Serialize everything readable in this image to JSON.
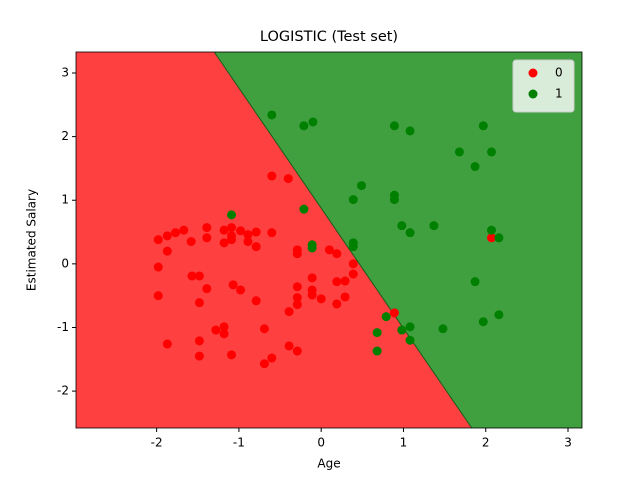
{
  "chart_data": {
    "type": "scatter",
    "title": "LOGISTIC (Test set)",
    "x_label": "Age",
    "y_label": "Estimated Salary",
    "xlim": [
      -2.98,
      3.17
    ],
    "ylim": [
      -2.58,
      3.33
    ],
    "xticks": [
      -2,
      -1,
      0,
      1,
      2,
      3
    ],
    "yticks": [
      -2,
      -1,
      0,
      1,
      2,
      3
    ],
    "legend": "upper right",
    "decision_boundary": {
      "x": [
        -1.3,
        1.83
      ],
      "y": [
        3.33,
        -2.58
      ],
      "colors": [
        "#ff4040",
        "#40a040"
      ]
    },
    "series": [
      {
        "name": "0",
        "color": "#ff0000",
        "x": [
          -1.98,
          -1.87,
          -1.77,
          -1.67,
          -1.98,
          -1.87,
          -1.98,
          -1.87,
          -1.58,
          -1.57,
          -1.48,
          -1.48,
          -1.39,
          -1.39,
          -1.39,
          -1.18,
          -1.18,
          -1.09,
          -1.09,
          -1.07,
          -0.98,
          -0.98,
          -1.09,
          -0.89,
          -0.89,
          -0.79,
          -0.79,
          -0.79,
          -0.6,
          -1.28,
          -1.18,
          -1.18,
          -1.48,
          -1.48,
          -1.09,
          -0.69,
          -0.69,
          -0.6,
          -0.39,
          -0.29,
          -0.39,
          -0.29,
          -0.29,
          -0.29,
          -0.29,
          -0.29,
          -0.11,
          -0.11,
          0,
          -0.11,
          0.1,
          0.19,
          0.19,
          0.29,
          0.19,
          0.29,
          0.39,
          0.39,
          -0.6,
          -0.4,
          0.89,
          2.07
        ],
        "values": [
          0.38,
          0.44,
          0.49,
          0.53,
          -0.05,
          0.2,
          -0.5,
          -1.26,
          0.35,
          -0.19,
          -0.19,
          -0.61,
          -0.39,
          0.57,
          0.41,
          0.53,
          0.33,
          0.57,
          0.44,
          -0.33,
          -0.41,
          0.52,
          0.38,
          0.46,
          0.35,
          0.5,
          0.27,
          -0.58,
          0.49,
          -1.04,
          -0.99,
          -1.1,
          -1.21,
          -1.45,
          -1.43,
          -1.02,
          -1.57,
          -1.48,
          -1.29,
          -1.37,
          -0.75,
          -0.64,
          -0.53,
          -0.36,
          0.22,
          0.16,
          -0.41,
          -0.49,
          -0.55,
          -0.22,
          0.22,
          0.16,
          -0.28,
          -0.27,
          -0.63,
          -0.52,
          0,
          -0.16,
          1.38,
          1.34,
          -0.77,
          0.41
        ]
      },
      {
        "name": "1",
        "color": "#008000",
        "x": [
          -0.6,
          -0.21,
          -0.1,
          0.89,
          1.08,
          1.97,
          1.68,
          2.07,
          1.87,
          0.49,
          0.39,
          0.89,
          0.89,
          0.98,
          1.08,
          1.37,
          -0.21,
          -1.09,
          -0.11,
          -0.11,
          0.39,
          0.39,
          2.07,
          2.16,
          1.87,
          1.97,
          2.16,
          0.79,
          0.68,
          0.98,
          1.08,
          1.48,
          1.08,
          0.68
        ],
        "values": [
          2.34,
          2.17,
          2.23,
          2.17,
          2.09,
          2.17,
          1.76,
          1.76,
          1.53,
          1.23,
          1.01,
          1.08,
          1.01,
          0.6,
          0.49,
          0.6,
          0.86,
          0.77,
          0.3,
          0.25,
          0.33,
          0.27,
          0.53,
          0.41,
          -0.28,
          -0.91,
          -0.8,
          -0.83,
          -1.08,
          -1.04,
          -0.99,
          -1.02,
          -1.2,
          -1.37
        ]
      }
    ]
  }
}
